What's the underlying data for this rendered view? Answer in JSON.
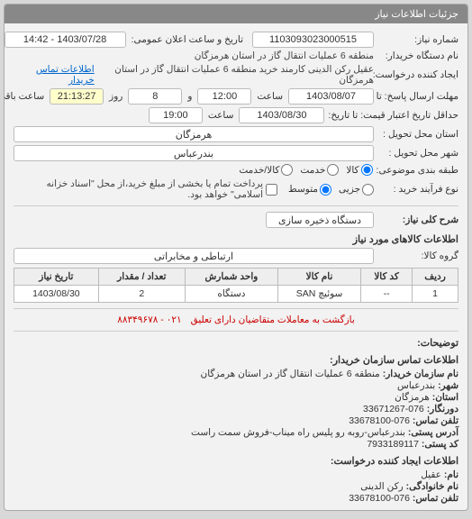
{
  "panel_title": "جزئیات اطلاعات نیاز",
  "labels": {
    "need_no": "شماره نیاز:",
    "ann_date": "تاریخ و ساعت اعلان عمومی:",
    "device_name": "نام دستگاه خریدار:",
    "creator": "ایجاد کننده درخواست:",
    "creator_link": "اطلاعات تماس خریدار",
    "resp_deadline": "مهلت ارسال پاسخ: تا تاریخ:",
    "saat": "ساعت",
    "va": "و",
    "rooz": "روز",
    "remain": "ساعت باقی مانده",
    "valid_deadline": "حداقل تاریخ اعتبار قیمت: تا تاریخ:",
    "province": "استان محل تحویل :",
    "city": "شهر محل تحویل :",
    "category": "طبقه بندی موضوعی:",
    "kala": "کالا",
    "khadmat": "خدمت",
    "kala_khadmat": "کالا/خدمت",
    "process": "نوع فرآیند خرید :",
    "jozi": "جزیی",
    "motavaset": "متوسط",
    "process_note": "پرداخت تمام یا بخشی از مبلغ خرید،از محل \"اسناد خزانه اسلامی\" خواهد بود.",
    "general": "شرح کلی نیاز:",
    "goods_info": "اطلاعات کالاهای مورد نیاز",
    "group": "گروه کالا:",
    "explanations": "توضیحات:",
    "buyer_org": "اطلاعات تماس سازمان خریدار:",
    "org_name": "نام سازمان خریدار:",
    "shahr": "شهر:",
    "ostan": "استان:",
    "dornagar": "دورنگار:",
    "tel": "تلفن تماس:",
    "address": "آدرس پستی:",
    "postal": "کد پستی:",
    "req_creator": "اطلاعات ایجاد کننده درخواست:",
    "name": "نام:",
    "family": "نام خانوادگی:",
    "phone": "تلفن تماس:",
    "legal": "بازگشت به معاملات متقاضیان دارای تعلیق"
  },
  "values": {
    "need_no": "1103093023000515",
    "ann_date": "1403/07/28 - 14:42",
    "device_name": "منطقه 6 عملیات انتقال گاز در استان هرمزگان",
    "creator": "عقیل رکن الدینی کارمند خرید منطقه 6 عملیات انتقال گاز در استان هرمزگان",
    "resp_date": "1403/08/07",
    "resp_time": "12:00",
    "resp_days": "8",
    "resp_remain": "21:13:27",
    "valid_date": "1403/08/30",
    "valid_time": "19:00",
    "province": "هرمزگان",
    "city": "بندرعباس",
    "general": "دستگاه ذخیره سازی",
    "group": "ارتباطی و مخابراتی",
    "org_name": "منطقه 6 عملیات انتقال گاز در استان هرمزگان",
    "shahr": "بندرعباس",
    "ostan": "هرمزگان",
    "dornagar": "076-33671267",
    "tel": "076-33678100",
    "address": "بندرعباس-روبه رو پلیس راه میناب-فروش سمت راست",
    "postal": "7933189117",
    "name": "عقیل",
    "family": "رکن الدینی",
    "phone": "076-33678100",
    "legal_phone": "۰۲۱ - ۸۸۳۴۹۶۷۸"
  },
  "table": {
    "headers": [
      "ردیف",
      "کد کالا",
      "نام کالا",
      "واحد شمارش",
      "تعداد / مقدار",
      "تاریخ نیاز"
    ],
    "rows": [
      [
        "1",
        "--",
        "سوئیچ SAN",
        "دستگاه",
        "2",
        "1403/08/30"
      ]
    ]
  }
}
